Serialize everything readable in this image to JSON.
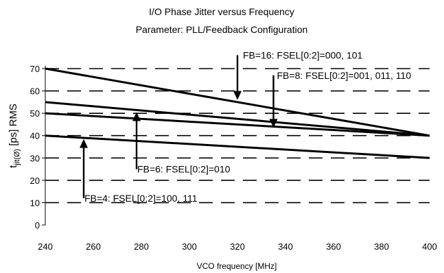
{
  "chart_data": {
    "type": "line",
    "title": "I/O Phase Jitter versus Frequency",
    "subtitle": "Parameter: PLL/Feedback Configuration",
    "xlabel": "VCO frequency [MHz]",
    "ylabel": {
      "prefix": "t",
      "subscript": "jit(Ø)",
      "suffix": " [ps] RMS"
    },
    "xlim": [
      240,
      400
    ],
    "ylim": [
      0,
      70
    ],
    "x_ticks": [
      240,
      260,
      280,
      300,
      320,
      340,
      360,
      380,
      400
    ],
    "y_ticks": [
      0,
      10,
      20,
      30,
      40,
      50,
      60,
      70
    ],
    "grid": "horizontal dashed",
    "series": [
      {
        "x": [
          240,
          400
        ],
        "values": [
          70,
          40
        ]
      },
      {
        "x": [
          240,
          400
        ],
        "values": [
          55,
          40
        ]
      },
      {
        "x": [
          240,
          400
        ],
        "values": [
          50,
          40
        ]
      },
      {
        "x": [
          240,
          400
        ],
        "values": [
          40,
          30
        ]
      }
    ],
    "annotations": [
      {
        "text": "FB=16: FSEL[0:2]=000, 101",
        "arrow_to": [
          320,
          56
        ],
        "arrow_from": [
          320,
          76
        ]
      },
      {
        "text": "FB=8: FSEL[0:2]=001, 011, 110",
        "arrow_to": [
          335,
          43.5
        ],
        "arrow_from": [
          335,
          67
        ]
      },
      {
        "text": "FB=6: FSEL[0:2]=010",
        "arrow_to": [
          278,
          50.5
        ],
        "arrow_from": [
          278,
          25
        ]
      },
      {
        "text": "FB=4: FSEL[0:2]=100, 111",
        "arrow_to": [
          256,
          38.5
        ],
        "arrow_from": [
          256,
          12
        ]
      }
    ]
  }
}
